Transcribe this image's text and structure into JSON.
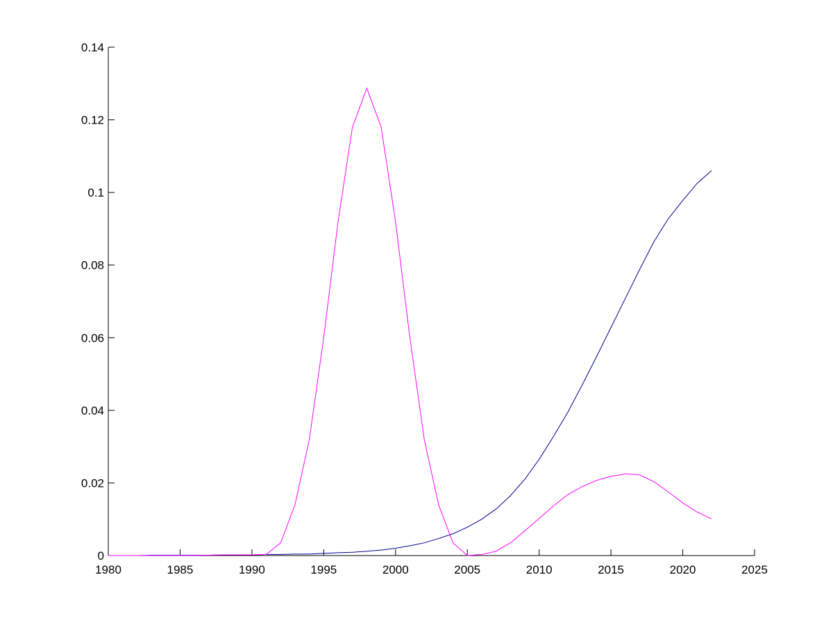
{
  "chart_data": {
    "type": "line",
    "x": [
      1980,
      1981,
      1982,
      1983,
      1984,
      1985,
      1986,
      1987,
      1988,
      1989,
      1990,
      1991,
      1992,
      1993,
      1994,
      1995,
      1996,
      1997,
      1998,
      1999,
      2000,
      2001,
      2002,
      2003,
      2004,
      2005,
      2006,
      2007,
      2008,
      2009,
      2010,
      2011,
      2012,
      2013,
      2014,
      2015,
      2016,
      2017,
      2018,
      2019,
      2020,
      2021,
      2022
    ],
    "series": [
      {
        "color": "#00008b",
        "values": [
          0,
          0,
          0,
          0.0001,
          0.0001,
          0.0001,
          0.0001,
          0.0001,
          0.0002,
          0.0002,
          0.0002,
          0.0003,
          0.0003,
          0.0004,
          0.0004,
          0.0006,
          0.0008,
          0.0009,
          0.0012,
          0.0015,
          0.002,
          0.0027,
          0.0035,
          0.0047,
          0.006,
          0.0078,
          0.01,
          0.0128,
          0.0165,
          0.021,
          0.0265,
          0.0328,
          0.0395,
          0.047,
          0.0548,
          0.0628,
          0.0708,
          0.0788,
          0.0865,
          0.0928,
          0.0978,
          0.1025,
          0.106
        ]
      },
      {
        "color": "#ff00ff",
        "values": [
          0,
          0,
          0,
          0,
          0,
          0,
          0,
          0.0001,
          0.0002,
          0.0002,
          0.0002,
          0.0003,
          0.0035,
          0.014,
          0.032,
          0.06,
          0.092,
          0.118,
          0.1287,
          0.118,
          0.092,
          0.06,
          0.032,
          0.014,
          0.0035,
          0,
          0.0003,
          0.0012,
          0.0035,
          0.0068,
          0.0102,
          0.0137,
          0.0168,
          0.019,
          0.0207,
          0.0218,
          0.0225,
          0.0222,
          0.0203,
          0.0175,
          0.0145,
          0.012,
          0.0101
        ]
      }
    ],
    "xlim": [
      1980,
      2025
    ],
    "xticks": [
      1980,
      1985,
      1990,
      1995,
      2000,
      2005,
      2010,
      2015,
      2020,
      2025
    ],
    "ylim": [
      0,
      0.14
    ],
    "yticks": [
      0,
      0.02,
      0.04,
      0.06,
      0.08,
      0.1,
      0.12,
      0.14
    ]
  }
}
